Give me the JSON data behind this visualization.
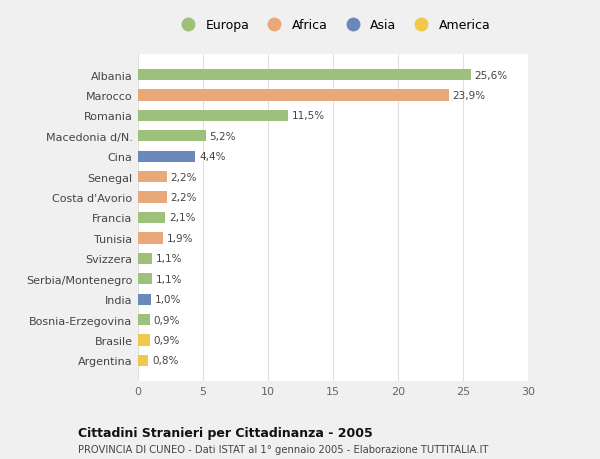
{
  "categories": [
    "Argentina",
    "Brasile",
    "Bosnia-Erzegovina",
    "India",
    "Serbia/Montenegro",
    "Svizzera",
    "Tunisia",
    "Francia",
    "Costa d'Avorio",
    "Senegal",
    "Cina",
    "Macedonia d/N.",
    "Romania",
    "Marocco",
    "Albania"
  ],
  "values": [
    0.8,
    0.9,
    0.9,
    1.0,
    1.1,
    1.1,
    1.9,
    2.1,
    2.2,
    2.2,
    4.4,
    5.2,
    11.5,
    23.9,
    25.6
  ],
  "labels": [
    "0,8%",
    "0,9%",
    "0,9%",
    "1,0%",
    "1,1%",
    "1,1%",
    "1,9%",
    "2,1%",
    "2,2%",
    "2,2%",
    "4,4%",
    "5,2%",
    "11,5%",
    "23,9%",
    "25,6%"
  ],
  "colors": [
    "#f2c84b",
    "#f2c84b",
    "#9dc07a",
    "#6b88bb",
    "#9dc07a",
    "#9dc07a",
    "#e8a87a",
    "#9dc07a",
    "#e8a87a",
    "#e8a87a",
    "#6b88bb",
    "#9dc07a",
    "#9dc07a",
    "#e8a87a",
    "#9dc07a"
  ],
  "legend_labels": [
    "Europa",
    "Africa",
    "Asia",
    "America"
  ],
  "legend_colors": [
    "#9dc07a",
    "#e8a87a",
    "#6b88bb",
    "#f2c84b"
  ],
  "title": "Cittadini Stranieri per Cittadinanza - 2005",
  "subtitle": "PROVINCIA DI CUNEO - Dati ISTAT al 1° gennaio 2005 - Elaborazione TUTTITALIA.IT",
  "xlim": [
    0,
    30
  ],
  "xticks": [
    0,
    5,
    10,
    15,
    20,
    25,
    30
  ],
  "plot_bg": "#ffffff",
  "fig_bg": "#f0f0f0",
  "bar_height": 0.55,
  "grid_color": "#e0e0e0"
}
